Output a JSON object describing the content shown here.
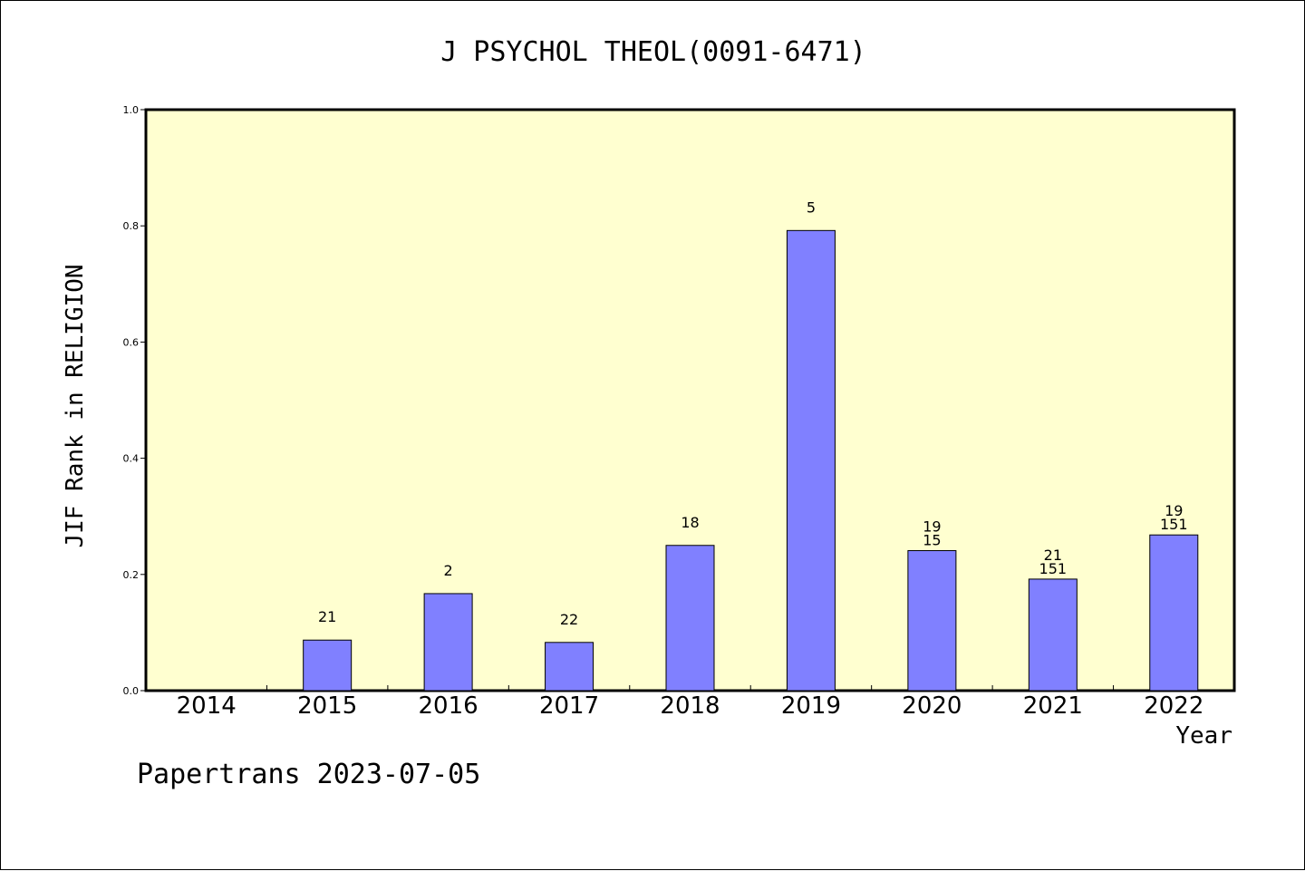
{
  "chart_data": {
    "type": "bar",
    "title": "J PSYCHOL THEOL(0091-6471)",
    "xlabel": "Year",
    "ylabel": "JIF Rank in RELIGION",
    "categories": [
      "2014",
      "2015",
      "2016",
      "2017",
      "2018",
      "2019",
      "2020",
      "2021",
      "2022"
    ],
    "values": [
      null,
      0.087,
      0.167,
      0.083,
      0.25,
      0.792,
      0.241,
      0.192,
      0.268
    ],
    "data_labels": [
      [],
      [
        "21"
      ],
      [
        "2"
      ],
      [
        "22"
      ],
      [
        "18"
      ],
      [
        "5"
      ],
      [
        "19",
        "15"
      ],
      [
        "21",
        "151"
      ],
      [
        "19",
        "151"
      ]
    ],
    "ylim": [
      0,
      1.0
    ],
    "yticks": [
      "0.0",
      "0.2",
      "0.4",
      "0.6",
      "0.8",
      "1.0"
    ],
    "grid": false,
    "colors": {
      "plot_background": "#ffffd0",
      "bar": "#8080ff",
      "bar_outline": "#000000"
    }
  },
  "footer": "Papertrans 2023-07-05"
}
